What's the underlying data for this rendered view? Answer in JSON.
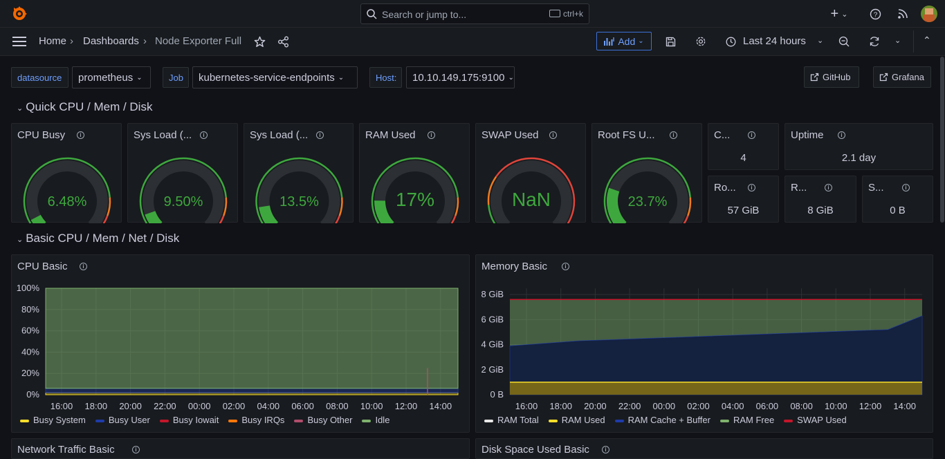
{
  "topbar": {
    "search_placeholder": "Search or jump to...",
    "search_shortcut": "ctrl+k"
  },
  "breadcrumb": {
    "home": "Home",
    "dashboards": "Dashboards",
    "current": "Node Exporter Full"
  },
  "toolbar": {
    "add_label": "Add",
    "time_range": "Last 24 hours"
  },
  "variables": {
    "datasource_label": "datasource",
    "datasource_value": "prometheus",
    "job_label": "Job",
    "job_value": "kubernetes-service-endpoints",
    "host_label": "Host:",
    "host_value": "10.10.149.175:9100"
  },
  "links": {
    "github": "GitHub",
    "grafana": "Grafana"
  },
  "rows": {
    "quick": "Quick CPU / Mem / Disk",
    "basic": "Basic CPU / Mem / Net / Disk",
    "network": "Network Traffic Basic",
    "disk": "Disk Space Used Basic"
  },
  "gauges": [
    {
      "title": "CPU Busy",
      "value": "6.48%",
      "fraction": 0.0648
    },
    {
      "title": "Sys Load (...",
      "value": "9.50%",
      "fraction": 0.095
    },
    {
      "title": "Sys Load (...",
      "value": "13.5%",
      "fraction": 0.135
    },
    {
      "title": "RAM Used",
      "value": "17%",
      "fraction": 0.17
    },
    {
      "title": "SWAP Used",
      "value": "NaN",
      "fraction": 0
    },
    {
      "title": "Root FS U...",
      "value": "23.7%",
      "fraction": 0.237
    }
  ],
  "stats": {
    "cores_title": "C...",
    "cores_value": "4",
    "uptime_title": "Uptime",
    "uptime_value": "2.1 day",
    "rootfs_title": "Ro...",
    "rootfs_value": "57 GiB",
    "ram_title": "R...",
    "ram_value": "8 GiB",
    "swap_title": "S...",
    "swap_value": "0 B"
  },
  "colors": {
    "green": "#3ea83e",
    "red": "#e0443a",
    "orange": "#f07b1e",
    "accent": "#6e9fff"
  },
  "cpu_basic": {
    "title": "CPU Basic",
    "legend": [
      {
        "name": "Busy System",
        "color": "#fade2a"
      },
      {
        "name": "Busy User",
        "color": "#1f3ba8"
      },
      {
        "name": "Busy Iowait",
        "color": "#c4162a"
      },
      {
        "name": "Busy IRQs",
        "color": "#ff780a"
      },
      {
        "name": "Busy Other",
        "color": "#b04e6c"
      },
      {
        "name": "Idle",
        "color": "#7eb26d"
      }
    ]
  },
  "memory_basic": {
    "title": "Memory Basic",
    "legend": [
      {
        "name": "RAM Total",
        "color": "#e8e8e8"
      },
      {
        "name": "RAM Used",
        "color": "#fade2a"
      },
      {
        "name": "RAM Cache + Buffer",
        "color": "#1f3ba8"
      },
      {
        "name": "RAM Free",
        "color": "#7eb26d"
      },
      {
        "name": "SWAP Used",
        "color": "#c4162a"
      }
    ]
  },
  "chart_data": [
    {
      "type": "area",
      "title": "CPU Basic",
      "x": [
        "16:00",
        "18:00",
        "20:00",
        "22:00",
        "00:00",
        "02:00",
        "04:00",
        "06:00",
        "08:00",
        "10:00",
        "12:00",
        "14:00"
      ],
      "yticks": [
        "0%",
        "20%",
        "40%",
        "60%",
        "80%",
        "100%"
      ],
      "ylim": [
        0,
        100
      ],
      "series": [
        {
          "name": "Busy System",
          "values": [
            2,
            2,
            2,
            2,
            2,
            2,
            2,
            2,
            2,
            2,
            2,
            2
          ]
        },
        {
          "name": "Busy User",
          "values": [
            4,
            4,
            4,
            4,
            4,
            4,
            4,
            4,
            4,
            4,
            4,
            4
          ]
        },
        {
          "name": "Busy Iowait",
          "values": [
            0,
            0,
            0,
            0,
            0,
            0,
            0,
            0,
            0,
            0,
            0,
            0
          ]
        },
        {
          "name": "Busy IRQs",
          "values": [
            0,
            0,
            0,
            0,
            0,
            0,
            0,
            0,
            0,
            0,
            0,
            0
          ]
        },
        {
          "name": "Busy Other",
          "values": [
            0,
            0,
            0,
            0,
            0,
            0,
            0,
            0,
            0,
            0,
            0,
            0
          ]
        },
        {
          "name": "Idle",
          "values": [
            94,
            94,
            94,
            94,
            94,
            94,
            94,
            94,
            94,
            94,
            94,
            94
          ]
        }
      ]
    },
    {
      "type": "area",
      "title": "Memory Basic",
      "x": [
        "16:00",
        "18:00",
        "20:00",
        "22:00",
        "00:00",
        "02:00",
        "04:00",
        "06:00",
        "08:00",
        "10:00",
        "12:00",
        "14:00"
      ],
      "yticks": [
        "0 B",
        "2 GiB",
        "4 GiB",
        "6 GiB",
        "8 GiB"
      ],
      "ylim": [
        0,
        8.5
      ],
      "series": [
        {
          "name": "RAM Total",
          "values": [
            7.6,
            7.6,
            7.6,
            7.6,
            7.6,
            7.6,
            7.6,
            7.6,
            7.6,
            7.6,
            7.6,
            7.6
          ]
        },
        {
          "name": "RAM Used",
          "values": [
            1,
            1,
            1,
            1,
            1,
            1,
            1,
            1,
            1,
            1,
            1,
            1
          ]
        },
        {
          "name": "RAM Cache + Buffer",
          "values": [
            3.1,
            3.3,
            3.4,
            3.5,
            3.6,
            3.7,
            3.8,
            3.9,
            4.0,
            4.1,
            4.2,
            5.3
          ]
        },
        {
          "name": "RAM Free",
          "values": [
            3.5,
            3.3,
            3.2,
            3.1,
            3.0,
            2.9,
            2.8,
            2.7,
            2.6,
            2.5,
            2.4,
            1.3
          ]
        },
        {
          "name": "SWAP Used",
          "values": [
            0,
            0,
            0,
            0,
            0,
            0,
            0,
            0,
            0,
            0,
            0,
            0
          ]
        }
      ]
    }
  ]
}
